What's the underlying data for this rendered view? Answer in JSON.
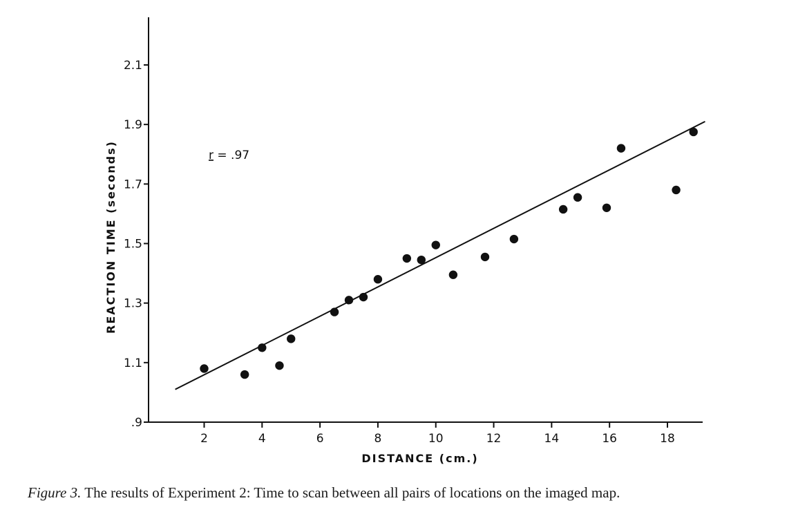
{
  "chart_data": {
    "type": "scatter",
    "xlabel": "DISTANCE (cm.)",
    "ylabel": "REACTION TIME (seconds)",
    "xlim": [
      0,
      19.6
    ],
    "ylim": [
      0.9,
      2.3
    ],
    "x_ticks": [
      2,
      4,
      6,
      8,
      10,
      12,
      14,
      16,
      18
    ],
    "x_tick_labels": [
      "2",
      "4",
      "6",
      "8",
      "10",
      "12",
      "14",
      "16",
      "18"
    ],
    "y_ticks": [
      0.9,
      1.1,
      1.3,
      1.5,
      1.7,
      1.9,
      2.1
    ],
    "y_tick_labels": [
      ".9",
      "1.1",
      "1.3",
      "1.5",
      "1.7",
      "1.9",
      "2.1"
    ],
    "grid": false,
    "annotation": {
      "prefix": "r",
      "suffix": " = .97"
    },
    "points": [
      {
        "x": 2.0,
        "y": 1.08
      },
      {
        "x": 3.4,
        "y": 1.06
      },
      {
        "x": 4.0,
        "y": 1.15
      },
      {
        "x": 4.6,
        "y": 1.09
      },
      {
        "x": 5.0,
        "y": 1.18
      },
      {
        "x": 6.5,
        "y": 1.27
      },
      {
        "x": 7.0,
        "y": 1.31
      },
      {
        "x": 7.5,
        "y": 1.32
      },
      {
        "x": 8.0,
        "y": 1.38
      },
      {
        "x": 9.0,
        "y": 1.45
      },
      {
        "x": 9.5,
        "y": 1.445
      },
      {
        "x": 10.0,
        "y": 1.495
      },
      {
        "x": 10.6,
        "y": 1.395
      },
      {
        "x": 11.7,
        "y": 1.455
      },
      {
        "x": 12.7,
        "y": 1.515
      },
      {
        "x": 14.4,
        "y": 1.615
      },
      {
        "x": 14.9,
        "y": 1.655
      },
      {
        "x": 15.9,
        "y": 1.62
      },
      {
        "x": 16.4,
        "y": 1.82
      },
      {
        "x": 18.3,
        "y": 1.68
      },
      {
        "x": 18.9,
        "y": 1.875
      }
    ],
    "fit_line": {
      "x": [
        1.0,
        19.3
      ],
      "y": [
        1.01,
        1.91
      ]
    }
  },
  "caption": {
    "label": "Figure 3.",
    "text": " The results of Experiment 2: Time to scan between all pairs of locations on the imaged map."
  }
}
